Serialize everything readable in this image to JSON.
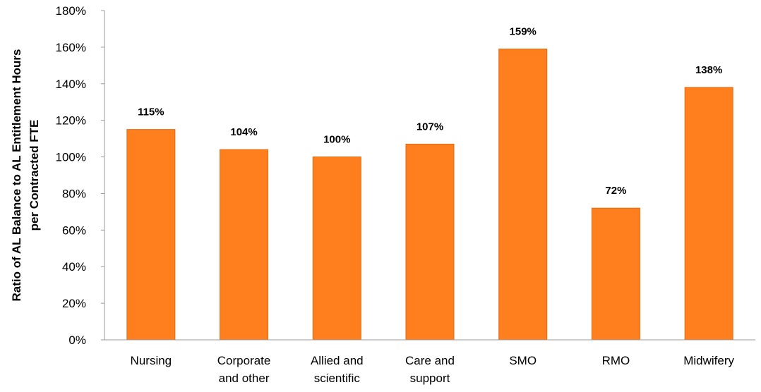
{
  "chart_data": {
    "type": "bar",
    "categories": [
      [
        "Nursing"
      ],
      [
        "Corporate",
        "and other"
      ],
      [
        "Allied and",
        "scientific"
      ],
      [
        "Care and",
        "support"
      ],
      [
        "SMO"
      ],
      [
        "RMO"
      ],
      [
        "Midwifery"
      ]
    ],
    "values": [
      115,
      104,
      100,
      107,
      159,
      72,
      138
    ],
    "data_labels": [
      "115%",
      "104%",
      "100%",
      "107%",
      "159%",
      "72%",
      "138%"
    ],
    "ylim": [
      0,
      180
    ],
    "y_ticks": [
      "0%",
      "20%",
      "40%",
      "60%",
      "80%",
      "100%",
      "120%",
      "140%",
      "160%",
      "180%"
    ],
    "ylabel_lines": [
      "Ratio of AL Balance to AL Entitlement Hours",
      "per Contracted FTE"
    ],
    "xlabel": "",
    "title": "",
    "bar_color": "#FF7F1E",
    "bar_edge_color": "#E06A10",
    "axis_color": "#999999",
    "grid": false,
    "legend": "none"
  }
}
